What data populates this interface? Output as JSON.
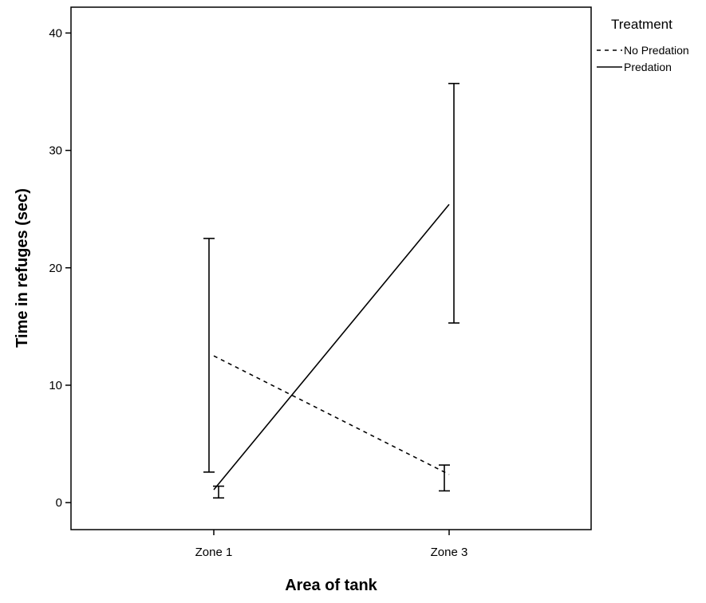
{
  "chart_data": {
    "type": "line",
    "xlabel": "Area of tank",
    "ylabel": "Time in refuges (sec)",
    "categories": [
      "Zone 1",
      "Zone 3"
    ],
    "ylim": [
      -2.3,
      42.2
    ],
    "yticks": [
      0,
      10,
      20,
      30,
      40
    ],
    "legend": {
      "title": "Treatment",
      "placement": "right"
    },
    "series": [
      {
        "name": "No Predation",
        "style": "dashed",
        "values": [
          12.5,
          2.4
        ],
        "error_low": [
          2.6,
          1.0
        ],
        "error_high": [
          22.5,
          3.2
        ]
      },
      {
        "name": "Predation",
        "style": "solid",
        "values": [
          1.1,
          25.4
        ],
        "error_low": [
          0.4,
          15.3
        ],
        "error_high": [
          1.4,
          35.7
        ]
      }
    ],
    "grid": false,
    "line_color": "#000000"
  }
}
